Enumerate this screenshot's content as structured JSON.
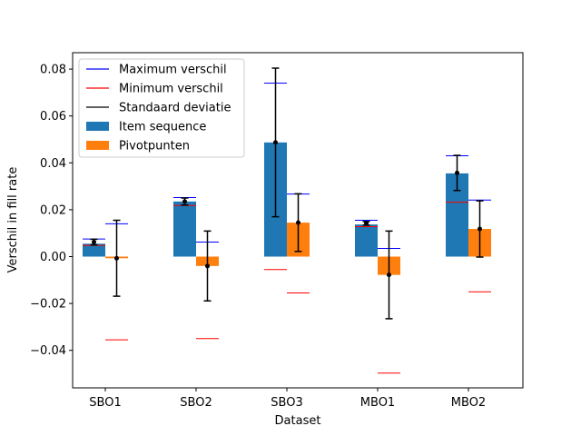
{
  "chart_data": {
    "type": "bar",
    "xlabel": "Dataset",
    "ylabel": "Verschil in fill rate",
    "categories": [
      "SBO1",
      "SBO2",
      "SBO3",
      "MBO1",
      "MBO2"
    ],
    "ylim": [
      -0.056,
      0.087
    ],
    "yticks": [
      -0.04,
      -0.02,
      0.0,
      0.02,
      0.04,
      0.06,
      0.08
    ],
    "ytick_labels": [
      "−0.04",
      "−0.02",
      "0.00",
      "0.02",
      "0.04",
      "0.06",
      "0.08"
    ],
    "legend_position": "top-left",
    "grid": false,
    "series": [
      {
        "name": "Item sequence",
        "color": "#1f77b4",
        "values": [
          0.0055,
          0.0235,
          0.0487,
          0.0137,
          0.0355
        ],
        "max": [
          0.0075,
          0.0252,
          0.074,
          0.0155,
          0.043
        ],
        "min": [
          0.0048,
          0.0218,
          -0.0055,
          0.0128,
          0.0232
        ],
        "mean": [
          0.0062,
          0.0235,
          0.0487,
          0.0142,
          0.0357
        ],
        "std": [
          0.0012,
          0.0015,
          0.0317,
          0.0008,
          0.0075
        ]
      },
      {
        "name": "Pivotpunten",
        "color": "#ff7f0e",
        "values": [
          -0.0007,
          -0.004,
          0.0145,
          -0.0078,
          0.0118
        ],
        "max": [
          0.014,
          0.0062,
          0.0267,
          0.0035,
          0.0241
        ],
        "min": [
          -0.0355,
          -0.035,
          -0.0155,
          -0.0497,
          -0.015
        ],
        "mean": [
          -0.0007,
          -0.004,
          0.0145,
          -0.0078,
          0.0118
        ],
        "std": [
          0.0162,
          0.0149,
          0.0123,
          0.0187,
          0.012
        ]
      }
    ],
    "legend": [
      {
        "label": "Maximum verschil",
        "kind": "line",
        "color": "#0000ff"
      },
      {
        "label": "Minimum verschil",
        "kind": "line",
        "color": "#ff0000"
      },
      {
        "label": "Standaard deviatie",
        "kind": "line",
        "color": "#000000"
      },
      {
        "label": "Item sequence",
        "kind": "patch",
        "color": "#1f77b4"
      },
      {
        "label": "Pivotpunten",
        "kind": "patch",
        "color": "#ff7f0e"
      }
    ]
  }
}
